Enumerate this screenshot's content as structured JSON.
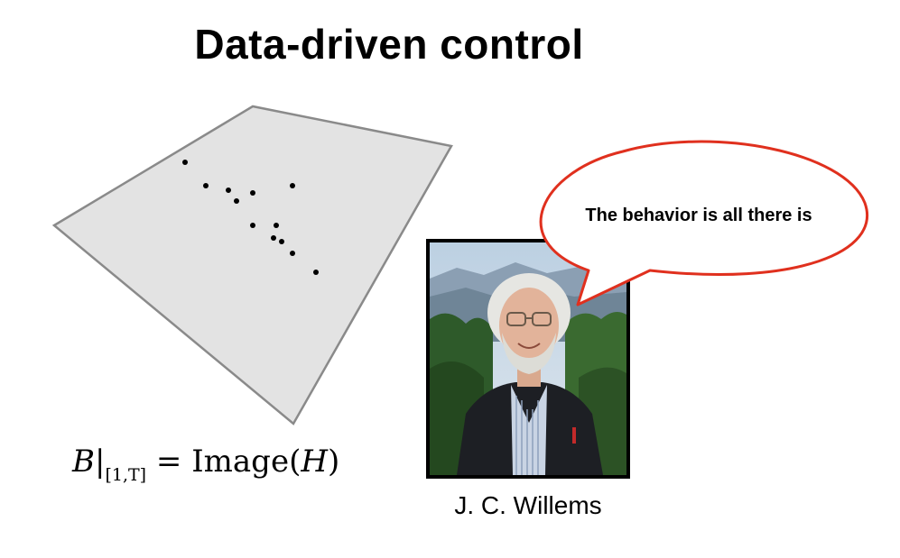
{
  "title": "Data-driven control",
  "formula": {
    "script_letter": "B",
    "subscript": "[1,T]",
    "equals": "=",
    "image_label": "Image",
    "arg": "H"
  },
  "caption": "J. C. Willems",
  "speech_bubble": "The behavior is all there is",
  "colors": {
    "plane_fill": "#e3e3e3",
    "plane_stroke": "#8a8a8a",
    "bubble_stroke": "#e0301e",
    "dots": "#000000"
  },
  "icons": {
    "photo": "portrait-photo-icon"
  }
}
